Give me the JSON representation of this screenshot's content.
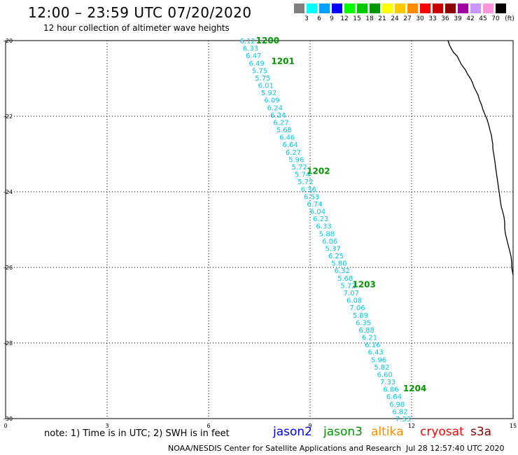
{
  "header": {
    "title": "12:00 – 23:59 UTC 07/20/2020",
    "subtitle": "12 hour collection of altimeter wave heights"
  },
  "legend": {
    "units": "(ft)",
    "bins": [
      {
        "label": "3",
        "color": "#808080"
      },
      {
        "label": "6",
        "color": "#00ffff"
      },
      {
        "label": "9",
        "color": "#00a0ff"
      },
      {
        "label": "12",
        "color": "#0000ff"
      },
      {
        "label": "15",
        "color": "#00ff00"
      },
      {
        "label": "18",
        "color": "#00c800"
      },
      {
        "label": "21",
        "color": "#009600"
      },
      {
        "label": "24",
        "color": "#ffff00"
      },
      {
        "label": "27",
        "color": "#ffc800"
      },
      {
        "label": "30",
        "color": "#ff8c00"
      },
      {
        "label": "33",
        "color": "#ff0000"
      },
      {
        "label": "36",
        "color": "#c80000"
      },
      {
        "label": "39",
        "color": "#8c0000"
      },
      {
        "label": "42",
        "color": "#a000a0"
      },
      {
        "label": "45",
        "color": "#c896ff"
      },
      {
        "label": "70",
        "color": "#ff96dc"
      },
      {
        "label": "",
        "color": "#000000"
      }
    ]
  },
  "axes": {
    "x_ticks": [
      "0",
      "3",
      "6",
      "9",
      "12",
      "15"
    ],
    "y_ticks": [
      "-20",
      "-22",
      "-24",
      "-26",
      "-28",
      "-30"
    ]
  },
  "track": {
    "color": "#00c8e6",
    "lon_start": 7.15,
    "lat_start": -20.0,
    "lon_end": 11.75,
    "lat_end": -30.0,
    "swh": [
      "6.12",
      "6.33",
      "6.47",
      "6.49",
      "5.75",
      "5.75",
      "6.01",
      "5.92",
      "6.09",
      "6.24",
      "6.24",
      "6.27",
      "5.68",
      "6.46",
      "6.64",
      "6.27",
      "5.96",
      "5.72",
      "5.74",
      "5.72",
      "6.36",
      "6.53",
      "6.74",
      "6.04",
      "6.23",
      "6.33",
      "5.88",
      "6.06",
      "5.37",
      "6.25",
      "5.80",
      "6.32",
      "5.68",
      "5.72",
      "7.07",
      "6.08",
      "7.06",
      "5.89",
      "6.35",
      "6.88",
      "6.21",
      "6.16",
      "6.43",
      "5.96",
      "5.82",
      "6.60",
      "7.33",
      "6.86",
      "6.64",
      "6.98",
      "6.82",
      "7.33"
    ]
  },
  "time_labels": {
    "color": "#009600",
    "items": [
      {
        "text": "1200",
        "lon": 7.4,
        "lat": -20.0
      },
      {
        "text": "1201",
        "lon": 7.85,
        "lat": -20.55
      },
      {
        "text": "1202",
        "lon": 8.9,
        "lat": -23.45
      },
      {
        "text": "1203",
        "lon": 10.25,
        "lat": -26.45
      },
      {
        "text": "1204",
        "lon": 11.75,
        "lat": -29.2
      }
    ]
  },
  "notes": {
    "text": "note: 1) Time is in UTC; 2) SWH is in feet"
  },
  "satellites": [
    {
      "name": "jason2",
      "color": "#0000ff"
    },
    {
      "name": "jason3",
      "color": "#009600"
    },
    {
      "name": "altika",
      "color": "#ff8c00"
    },
    {
      "name": "cryosat",
      "color": "#ff0000"
    },
    {
      "name": "s3a",
      "color": "#8c0000"
    }
  ],
  "footer": {
    "org": "NOAA/NESDIS Center for Satellite Applications and Research",
    "timestamp": "Jul 28 12:57:40 UTC 2020"
  }
}
